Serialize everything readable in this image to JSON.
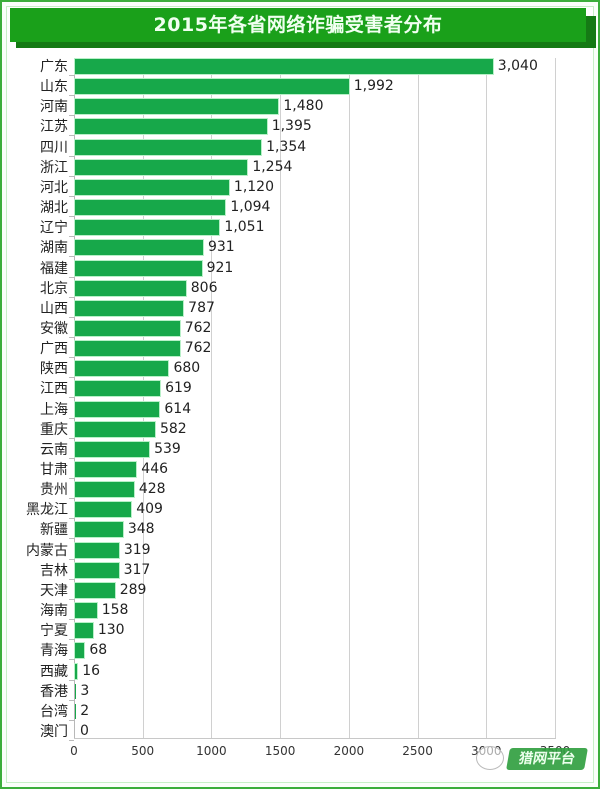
{
  "title": "2015年各省网络诈骗受害者分布",
  "x_axis": {
    "ticks": [
      "0",
      "500",
      "1000",
      "1500",
      "2000",
      "2500",
      "3000",
      "3500"
    ],
    "tick_values": [
      0,
      500,
      1000,
      1500,
      2000,
      2500,
      3000,
      3500
    ]
  },
  "watermark": {
    "icon": "wechat-icon",
    "text": "猎网平台"
  },
  "colors": {
    "bar": "#17a84a",
    "title_bg": "#1aa01a",
    "frame": "#3cae3c"
  },
  "chart_data": {
    "type": "bar",
    "orientation": "horizontal",
    "title": "2015年各省网络诈骗受害者分布",
    "xlabel": "",
    "ylabel": "",
    "xlim": [
      0,
      3500
    ],
    "grid": true,
    "legend": null,
    "categories": [
      "广东",
      "山东",
      "河南",
      "江苏",
      "四川",
      "浙江",
      "河北",
      "湖北",
      "辽宁",
      "湖南",
      "福建",
      "北京",
      "山西",
      "安徽",
      "广西",
      "陕西",
      "江西",
      "上海",
      "重庆",
      "云南",
      "甘肃",
      "贵州",
      "黑龙江",
      "新疆",
      "内蒙古",
      "吉林",
      "天津",
      "海南",
      "宁夏",
      "青海",
      "西藏",
      "香港",
      "台湾",
      "澳门"
    ],
    "values": [
      3040,
      1992,
      1480,
      1395,
      1354,
      1254,
      1120,
      1094,
      1051,
      931,
      921,
      806,
      787,
      762,
      762,
      680,
      619,
      614,
      582,
      539,
      446,
      428,
      409,
      348,
      319,
      317,
      289,
      158,
      130,
      68,
      16,
      3,
      2,
      0
    ],
    "labels": [
      "3,040",
      "1,992",
      "1,480",
      "1,395",
      "1,354",
      "1,254",
      "1,120",
      "1,094",
      "1,051",
      "931",
      "921",
      "806",
      "787",
      "762",
      "762",
      "680",
      "619",
      "614",
      "582",
      "539",
      "446",
      "428",
      "409",
      "348",
      "319",
      "317",
      "289",
      "158",
      "130",
      "68",
      "16",
      "3",
      "2",
      "0"
    ]
  }
}
